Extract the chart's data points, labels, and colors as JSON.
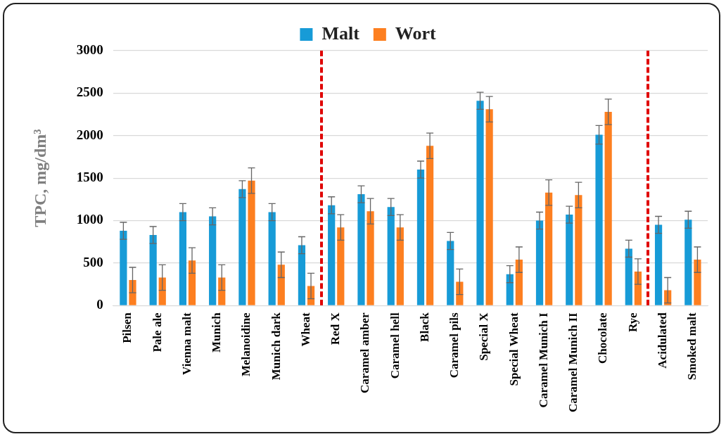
{
  "chart_data": {
    "type": "bar",
    "ylabel": "TPC, mg/dm³",
    "categories": [
      "Pilsen",
      "Pale ale",
      "Vienna malt",
      "Munich",
      "Melanoidine",
      "Munich dark",
      "Wheat",
      "Red X",
      "Caramel amber",
      "Caramel hell",
      "Black",
      "Caramel pils",
      "Special X",
      "Special Wheat",
      "Caramel Munich I",
      "Caramel Munich II",
      "Chocolate",
      "Rye",
      "Acidulated",
      "Smoked malt"
    ],
    "series": [
      {
        "name": "Malt",
        "color": "#179bd7",
        "values": [
          880,
          830,
          1100,
          1050,
          1370,
          1100,
          710,
          1180,
          1310,
          1160,
          1600,
          760,
          2410,
          370,
          1000,
          1070,
          2010,
          670,
          950,
          1010
        ],
        "errors": [
          100,
          100,
          100,
          100,
          100,
          100,
          100,
          100,
          100,
          100,
          100,
          100,
          100,
          100,
          100,
          100,
          110,
          100,
          100,
          100
        ]
      },
      {
        "name": "Wort",
        "color": "#fd7f20",
        "values": [
          300,
          330,
          530,
          330,
          1470,
          480,
          230,
          920,
          1110,
          920,
          1880,
          280,
          2310,
          540,
          1330,
          1300,
          2280,
          400,
          180,
          540
        ],
        "errors": [
          150,
          150,
          150,
          150,
          150,
          150,
          150,
          150,
          150,
          150,
          150,
          150,
          150,
          150,
          150,
          150,
          150,
          150,
          150,
          150
        ]
      }
    ],
    "ylim": [
      0,
      3000
    ],
    "yticks": [
      0,
      500,
      1000,
      1500,
      2000,
      2500,
      3000
    ],
    "grid": "y",
    "legend": "top"
  }
}
